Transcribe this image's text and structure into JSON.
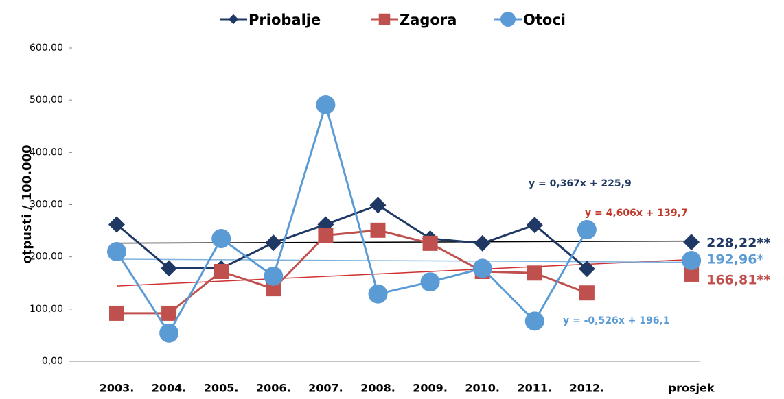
{
  "chart_data": {
    "type": "line",
    "y_label": "otpusti / 100.000",
    "categories": [
      "2003.",
      "2004.",
      "2005.",
      "2006.",
      "2007.",
      "2008.",
      "2009.",
      "2010.",
      "2011.",
      "2012.",
      null,
      "prosjek"
    ],
    "ylim": [
      0,
      600
    ],
    "yticks": [
      {
        "value": 0,
        "label": "0,00"
      },
      {
        "value": 100,
        "label": "100,00"
      },
      {
        "value": 200,
        "label": "200,00"
      },
      {
        "value": 300,
        "label": "300,00"
      },
      {
        "value": 400,
        "label": "400,00"
      },
      {
        "value": 500,
        "label": "500,00"
      },
      {
        "value": 600,
        "label": "600,00"
      }
    ],
    "grid": false,
    "legend": "top",
    "series": [
      {
        "name": "Priobalje",
        "color": "#1f3864",
        "marker": "diamond",
        "values": [
          262,
          178,
          178,
          227,
          262,
          299,
          235,
          226,
          261,
          177,
          null,
          228.22
        ],
        "value_labels": [
          null,
          null,
          null,
          null,
          null,
          null,
          null,
          null,
          null,
          null,
          null,
          "228,22**"
        ],
        "trendline": {
          "label": "y = 0,367x + 225,9",
          "slope": 0.367,
          "intercept": 225.9,
          "color": "#000000"
        }
      },
      {
        "name": "Zagora",
        "color": "#c0504d",
        "marker": "square",
        "values": [
          92,
          92,
          172,
          139,
          241,
          251,
          226,
          172,
          169,
          131,
          null,
          166.81
        ],
        "value_labels": [
          null,
          null,
          null,
          null,
          null,
          null,
          null,
          null,
          null,
          null,
          null,
          "166,81**"
        ],
        "trendline": {
          "label": "y = 4,606x + 139,7",
          "slope": 4.606,
          "intercept": 139.7,
          "color": "#d03030"
        }
      },
      {
        "name": "Otoci",
        "color": "#5b9bd5",
        "marker": "circle",
        "values": [
          210,
          54,
          235,
          163,
          491,
          129,
          152,
          178,
          77,
          252,
          null,
          192.96
        ],
        "value_labels": [
          null,
          null,
          null,
          null,
          null,
          null,
          null,
          null,
          null,
          null,
          null,
          "192,96*"
        ],
        "trendline": {
          "label": "y = -0,526x + 196,1",
          "slope": -0.526,
          "intercept": 196.1,
          "color": "#7fb2dc"
        }
      }
    ]
  }
}
